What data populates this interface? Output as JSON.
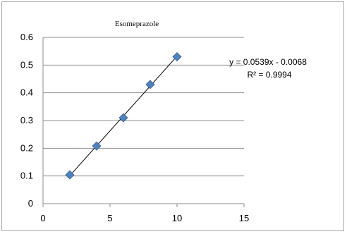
{
  "chart_data": {
    "type": "scatter",
    "title": "Esomeprazole",
    "x": [
      2,
      4,
      6,
      8,
      10
    ],
    "y": [
      0.104,
      0.208,
      0.31,
      0.43,
      0.53
    ],
    "xlim": [
      0,
      15
    ],
    "ylim": [
      0,
      0.6
    ],
    "x_ticks": [
      "0",
      "5",
      "10",
      "15"
    ],
    "y_ticks": [
      "0",
      "0.1",
      "0.2",
      "0.3",
      "0.4",
      "0.5",
      "0.6"
    ],
    "grid": "horizontal",
    "trendline": {
      "slope": 0.0539,
      "intercept": -0.0068,
      "x_range": [
        2,
        10
      ]
    },
    "equation_label": "y = 0.0539x - 0.0068",
    "r2_label": "R² = 0.9994",
    "marker_color": "#4f81bd",
    "line_color": "#000000",
    "grid_color": "#8c8c8c"
  }
}
